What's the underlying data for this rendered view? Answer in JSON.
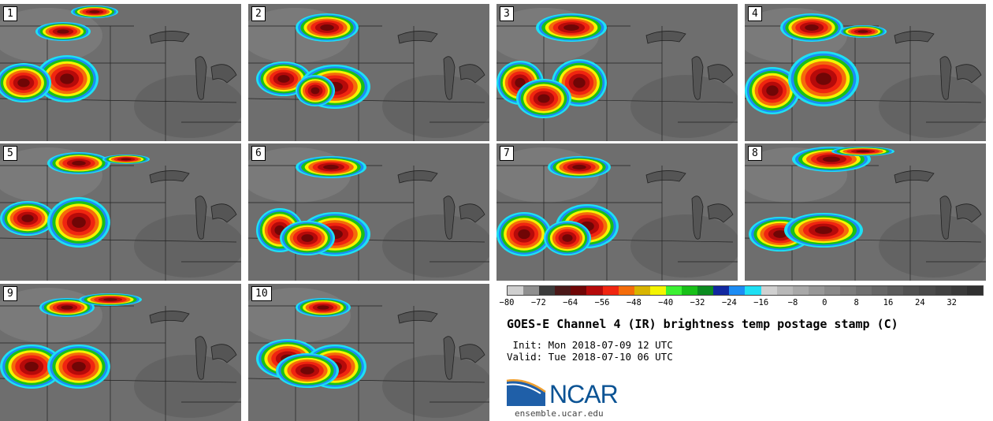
{
  "panels": [
    "1",
    "2",
    "3",
    "4",
    "5",
    "6",
    "7",
    "8",
    "9",
    "10"
  ],
  "colorbar": {
    "colors": [
      "#cfcfcf",
      "#8f8f8f",
      "#3b3b3b",
      "#4b1818",
      "#700606",
      "#b60a0a",
      "#f02510",
      "#f46c0a",
      "#d8b400",
      "#f4f400",
      "#3cf032",
      "#18c018",
      "#0c8c20",
      "#1228a0",
      "#1c8cf4",
      "#1ee0f4",
      "#d0d0d0",
      "#b8b8b8",
      "#a8a8a8",
      "#989898",
      "#8a8a8a",
      "#7c7c7c",
      "#707070",
      "#666666",
      "#5c5c5c",
      "#525252",
      "#4a4a4a",
      "#424242",
      "#3a3a3a",
      "#303030"
    ],
    "ticks": [
      "−80",
      "−72",
      "−64",
      "−56",
      "−48",
      "−40",
      "−32",
      "−24",
      "−16",
      "−8",
      "0",
      "8",
      "16",
      "24",
      "32"
    ]
  },
  "title": "GOES-E Channel 4 (IR) brightness temp postage stamp (C)",
  "init": " Init: Mon 2018-07-09 12 UTC",
  "valid": "Valid: Tue 2018-07-10 06 UTC",
  "logo_text": "NCAR",
  "url": "ensemble.ucar.edu",
  "storms": [
    [
      [
        85,
        95,
        40,
        30
      ],
      [
        30,
        100,
        35,
        25
      ],
      [
        80,
        35,
        35,
        12
      ],
      [
        120,
        10,
        30,
        8
      ]
    ],
    [
      [
        100,
        30,
        40,
        18
      ],
      [
        45,
        95,
        35,
        22
      ],
      [
        110,
        105,
        45,
        28
      ],
      [
        85,
        110,
        25,
        20
      ]
    ],
    [
      [
        95,
        30,
        45,
        18
      ],
      [
        30,
        100,
        30,
        28
      ],
      [
        105,
        100,
        35,
        30
      ],
      [
        60,
        120,
        35,
        25
      ]
    ],
    [
      [
        85,
        30,
        40,
        18
      ],
      [
        35,
        110,
        35,
        30
      ],
      [
        100,
        95,
        45,
        35
      ],
      [
        150,
        35,
        30,
        8
      ]
    ],
    [
      [
        100,
        25,
        40,
        14
      ],
      [
        35,
        95,
        35,
        22
      ],
      [
        100,
        100,
        40,
        32
      ],
      [
        160,
        20,
        30,
        6
      ]
    ],
    [
      [
        105,
        30,
        45,
        14
      ],
      [
        40,
        110,
        30,
        28
      ],
      [
        110,
        115,
        45,
        28
      ],
      [
        75,
        120,
        35,
        22
      ]
    ],
    [
      [
        105,
        30,
        40,
        14
      ],
      [
        35,
        115,
        35,
        28
      ],
      [
        115,
        105,
        40,
        28
      ],
      [
        90,
        120,
        30,
        22
      ]
    ],
    [
      [
        110,
        20,
        50,
        16
      ],
      [
        45,
        115,
        40,
        22
      ],
      [
        100,
        110,
        50,
        22
      ],
      [
        150,
        10,
        40,
        6
      ]
    ],
    [
      [
        85,
        30,
        35,
        12
      ],
      [
        40,
        105,
        40,
        28
      ],
      [
        100,
        105,
        40,
        28
      ],
      [
        140,
        20,
        40,
        8
      ]
    ],
    [
      [
        95,
        30,
        35,
        12
      ],
      [
        50,
        95,
        40,
        25
      ],
      [
        110,
        105,
        40,
        28
      ],
      [
        75,
        110,
        40,
        22
      ]
    ]
  ]
}
